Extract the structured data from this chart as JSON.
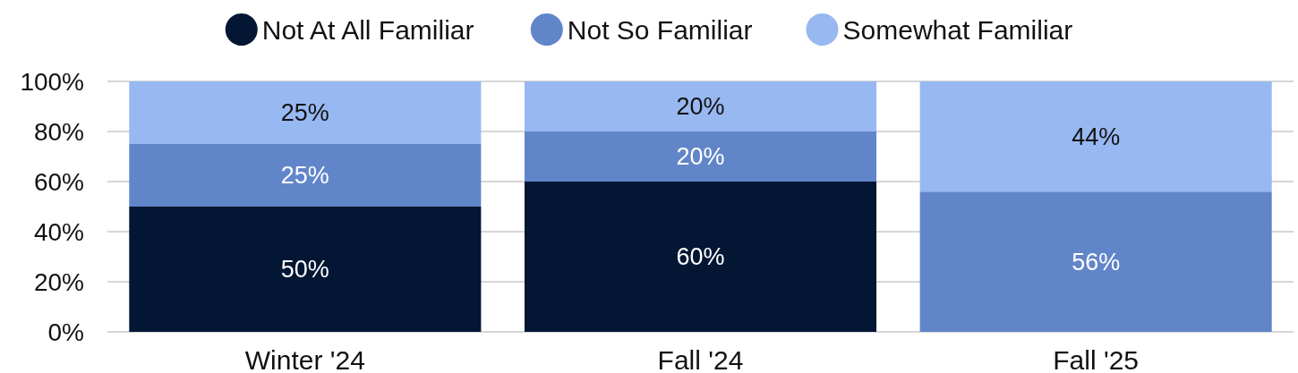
{
  "chart_data": {
    "type": "bar",
    "stacked": true,
    "categories": [
      "Winter '24",
      "Fall '24",
      "Fall '25"
    ],
    "series": [
      {
        "name": "Not At All Familiar",
        "color": "#031633",
        "values": [
          50,
          60,
          0
        ],
        "value_labels": [
          "50%",
          "60%",
          null
        ]
      },
      {
        "name": "Not So Familiar",
        "color": "#6185c9",
        "values": [
          25,
          20,
          56
        ],
        "value_labels": [
          "25%",
          "20%",
          "56%"
        ]
      },
      {
        "name": "Somewhat Familiar",
        "color": "#98b8f2",
        "values": [
          25,
          20,
          44
        ],
        "value_labels": [
          "25%",
          "20%",
          "44%"
        ]
      }
    ],
    "ylim": [
      0,
      100
    ],
    "yticks": [
      {
        "value": 0,
        "label": "0%"
      },
      {
        "value": 20,
        "label": "20%"
      },
      {
        "value": 40,
        "label": "40%"
      },
      {
        "value": 60,
        "label": "60%"
      },
      {
        "value": 80,
        "label": "80%"
      },
      {
        "value": 100,
        "label": "100%"
      }
    ],
    "grid": "y",
    "legend": "top"
  }
}
